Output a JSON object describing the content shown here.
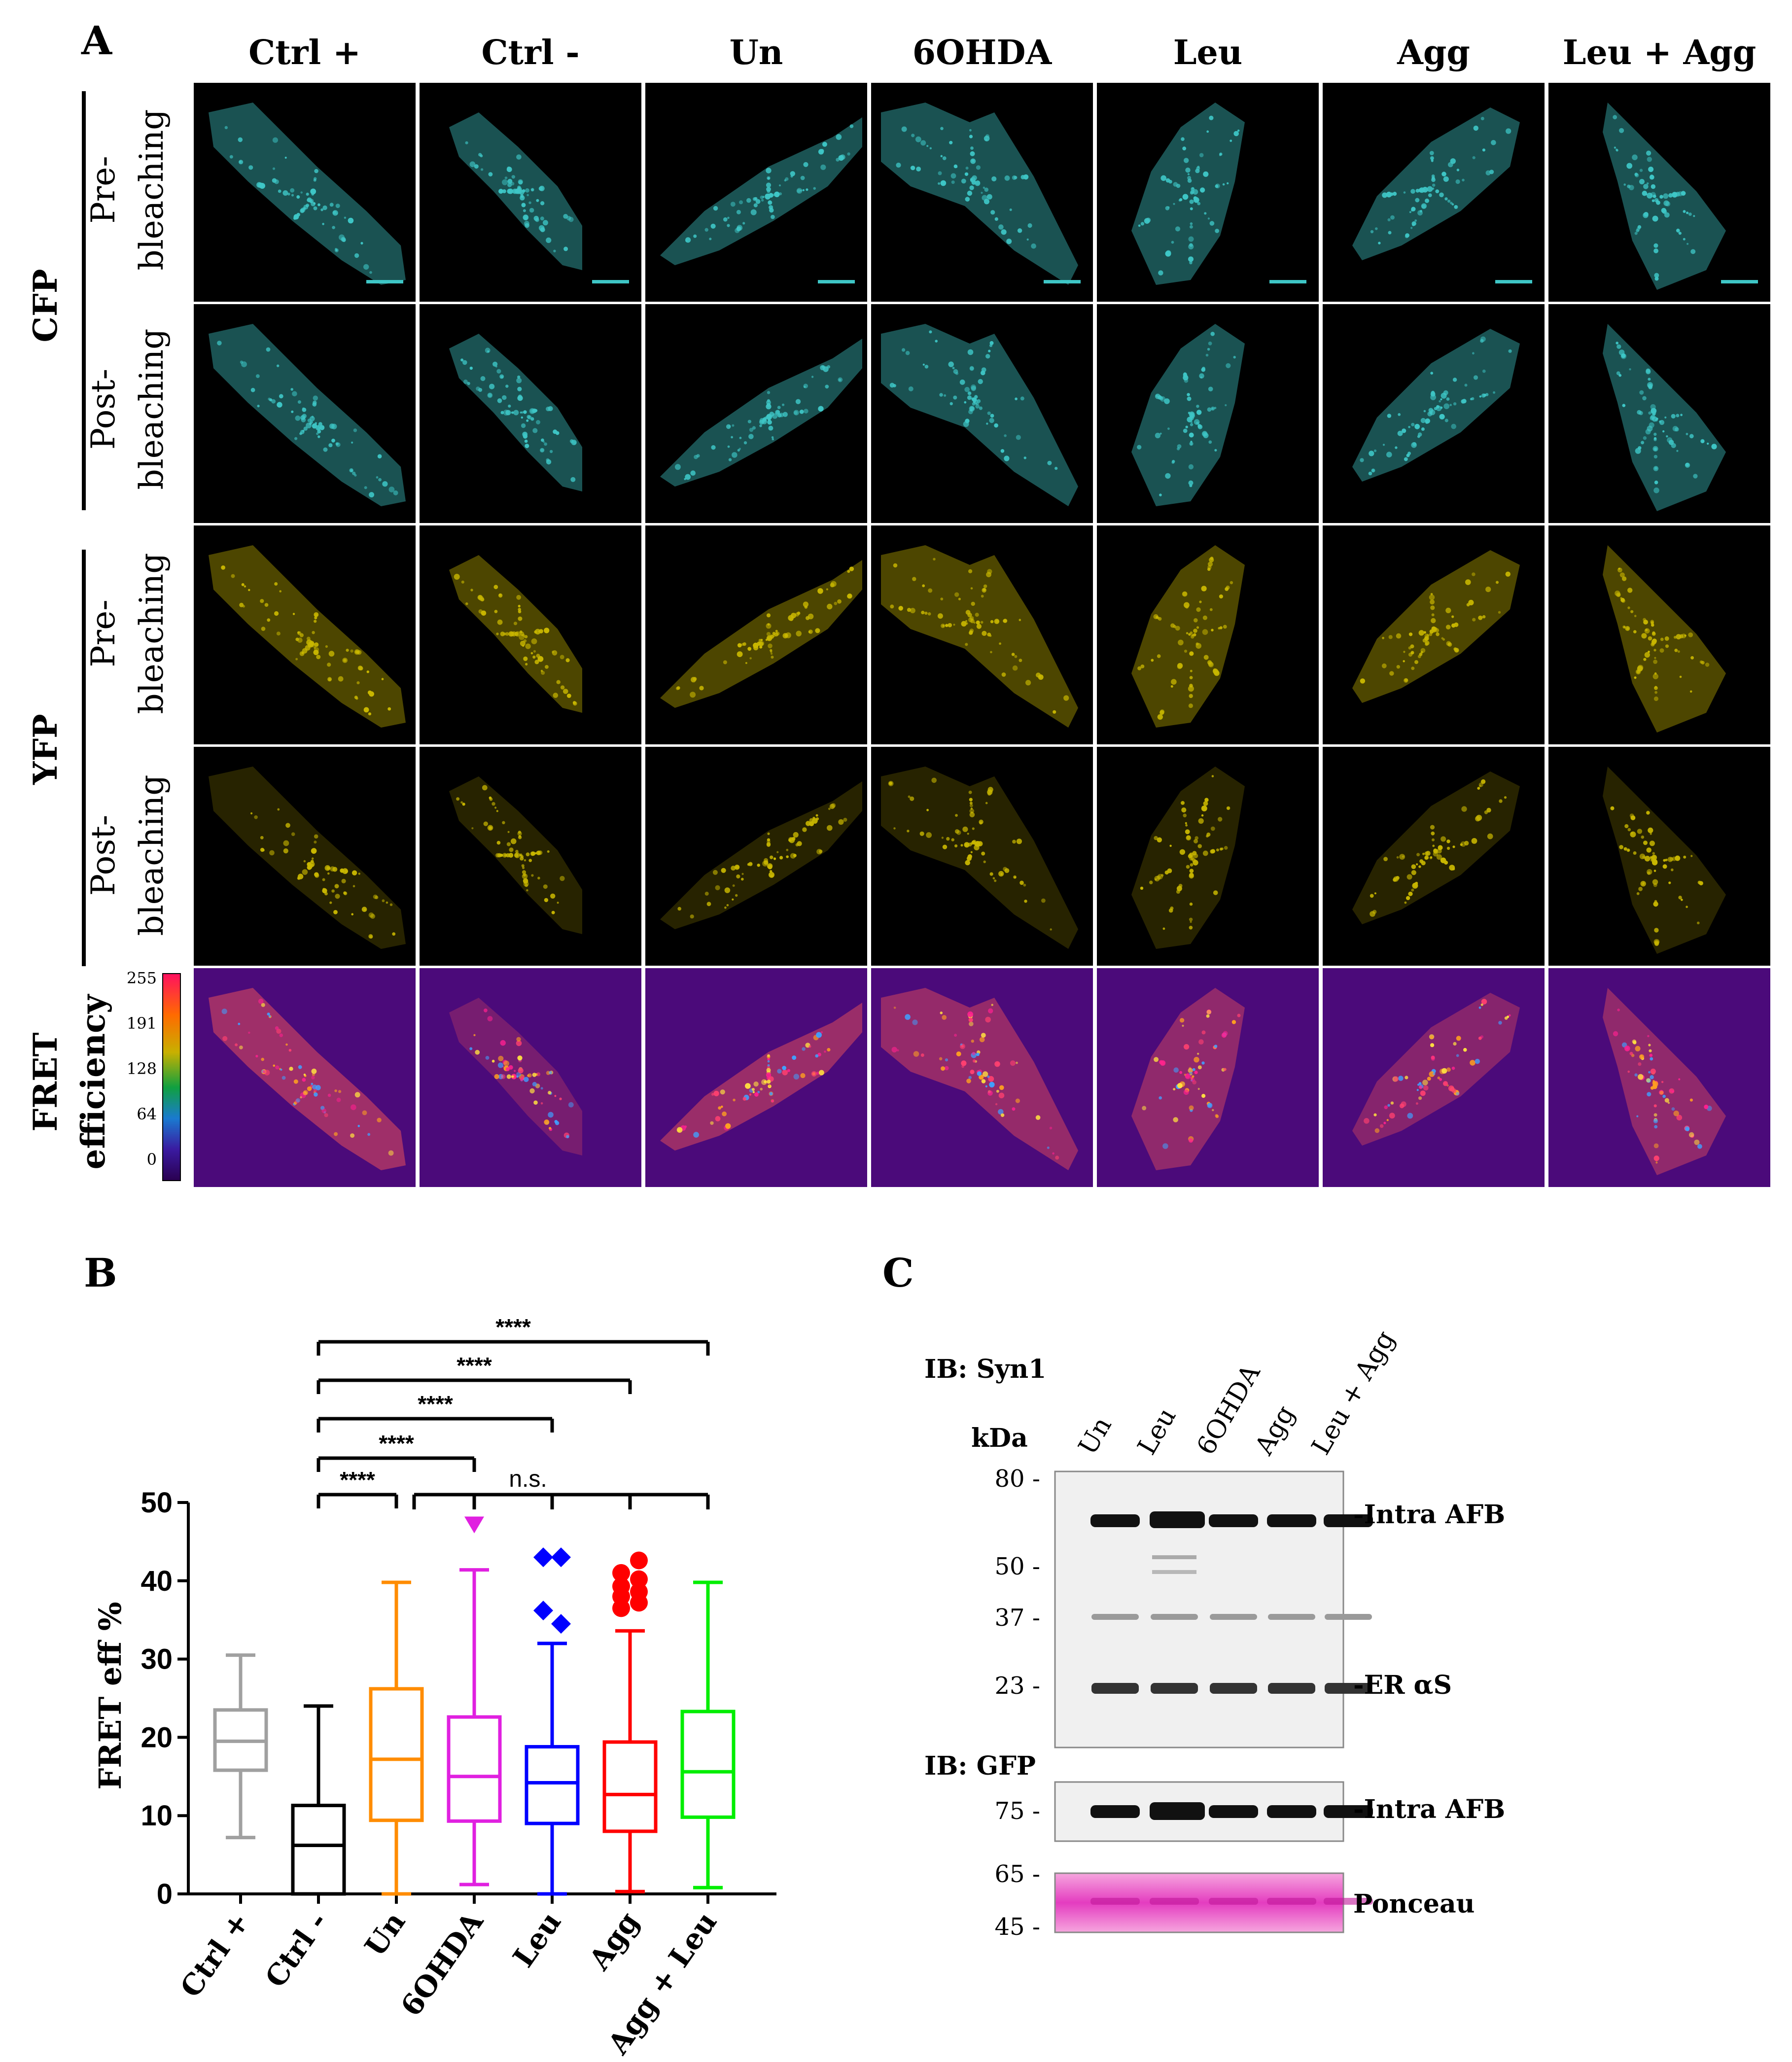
{
  "panelA": {
    "letter": "A",
    "columns": [
      "Ctrl +",
      "Ctrl -",
      "Un",
      "6OHDA",
      "Leu",
      "Agg",
      "Leu + Agg"
    ],
    "groups": [
      "CFP",
      "YFP"
    ],
    "rows": [
      {
        "line1": "Pre-",
        "line2": "bleaching",
        "channel": "cfp"
      },
      {
        "line1": "Post-",
        "line2": "bleaching",
        "channel": "cfp"
      },
      {
        "line1": "Pre-",
        "line2": "bleaching",
        "channel": "yfp"
      },
      {
        "line1": "Post-",
        "line2": "bleaching",
        "channel": "yfp"
      }
    ],
    "fretLabel": [
      "FRET",
      "efficiency"
    ],
    "lutTicks": [
      "255",
      "191",
      "128",
      "64",
      "0"
    ],
    "colors": {
      "cfp": "#3ec6c6",
      "yfp": "#c9b700",
      "fretBg": "#4b0a7a",
      "fretCell": "#ff5a55"
    }
  },
  "panelB": {
    "letter": "B"
  },
  "chart_data": {
    "type": "box",
    "ylabel": "FRET eff %",
    "ylim": [
      0,
      50
    ],
    "yticks": [
      "0",
      "10",
      "20",
      "30",
      "40",
      "50"
    ],
    "categories": [
      "Ctrl +",
      "Ctrl -",
      "Un",
      "6OHDA",
      "Leu",
      "Agg",
      "Agg + Leu"
    ],
    "series": [
      {
        "name": "Ctrl +",
        "color": "#a0a0a0",
        "min": 7.2,
        "q1": 15.8,
        "median": 19.5,
        "q3": 23.5,
        "max": 30.5,
        "outliers": [],
        "marker": "none"
      },
      {
        "name": "Ctrl -",
        "color": "#000000",
        "min": 0.0,
        "q1": 0.0,
        "median": 6.2,
        "q3": 11.3,
        "max": 24.0,
        "outliers": [],
        "marker": "none"
      },
      {
        "name": "Un",
        "color": "#ff8c00",
        "min": 0.0,
        "q1": 9.4,
        "median": 17.2,
        "q3": 26.2,
        "max": 39.8,
        "outliers": [],
        "marker": "none"
      },
      {
        "name": "6OHDA",
        "color": "#e020e0",
        "min": 1.2,
        "q1": 9.3,
        "median": 15.0,
        "q3": 22.6,
        "max": 41.4,
        "outliers": [
          47.2
        ],
        "marker": "triangle"
      },
      {
        "name": "Leu",
        "color": "#0000ff",
        "min": 0.0,
        "q1": 9.0,
        "median": 14.2,
        "q3": 18.8,
        "max": 32.0,
        "outliers": [
          36.2,
          34.5,
          43.0,
          43.0
        ],
        "marker": "diamond"
      },
      {
        "name": "Agg",
        "color": "#ff0000",
        "min": 0.3,
        "q1": 8.0,
        "median": 12.7,
        "q3": 19.4,
        "max": 33.6,
        "outliers": [
          36.5,
          37.2,
          38.0,
          38.6,
          39.3,
          40.2,
          41.0,
          42.6
        ],
        "marker": "circle"
      },
      {
        "name": "Agg + Leu",
        "color": "#00ee00",
        "min": 0.8,
        "q1": 9.8,
        "median": 15.6,
        "q3": 23.3,
        "max": 39.8,
        "outliers": [],
        "marker": "none"
      }
    ],
    "annotations": [
      {
        "label": "****",
        "from": 1,
        "to": 2,
        "level": 0
      },
      {
        "label": "****",
        "from": 1,
        "to": 3,
        "level": 1
      },
      {
        "label": "****",
        "from": 1,
        "to": 4,
        "level": 2
      },
      {
        "label": "****",
        "from": 1,
        "to": 5,
        "level": 3
      },
      {
        "label": "****",
        "from": 1,
        "to": 6,
        "level": 4
      },
      {
        "label": "n.s.",
        "from": 2,
        "to": 6,
        "level": 0,
        "comb": true
      }
    ]
  },
  "panelC": {
    "letter": "C",
    "ib1": "IB: Syn1",
    "ib2": "IB: GFP",
    "kda": "kDa",
    "lanes": [
      "Un",
      "Leu",
      "6OHDA",
      "Agg",
      "Leu + Agg"
    ],
    "blot1": {
      "markers": [
        "80",
        "50",
        "37",
        "23"
      ],
      "labels": [
        "-Intra AFB",
        "-ER αS"
      ]
    },
    "blot2": {
      "markers": [
        "75"
      ],
      "labels": [
        "-Intra AFB"
      ]
    },
    "blot3": {
      "markers": [
        "65",
        "45"
      ],
      "labels": [
        "Ponceau"
      ]
    }
  }
}
